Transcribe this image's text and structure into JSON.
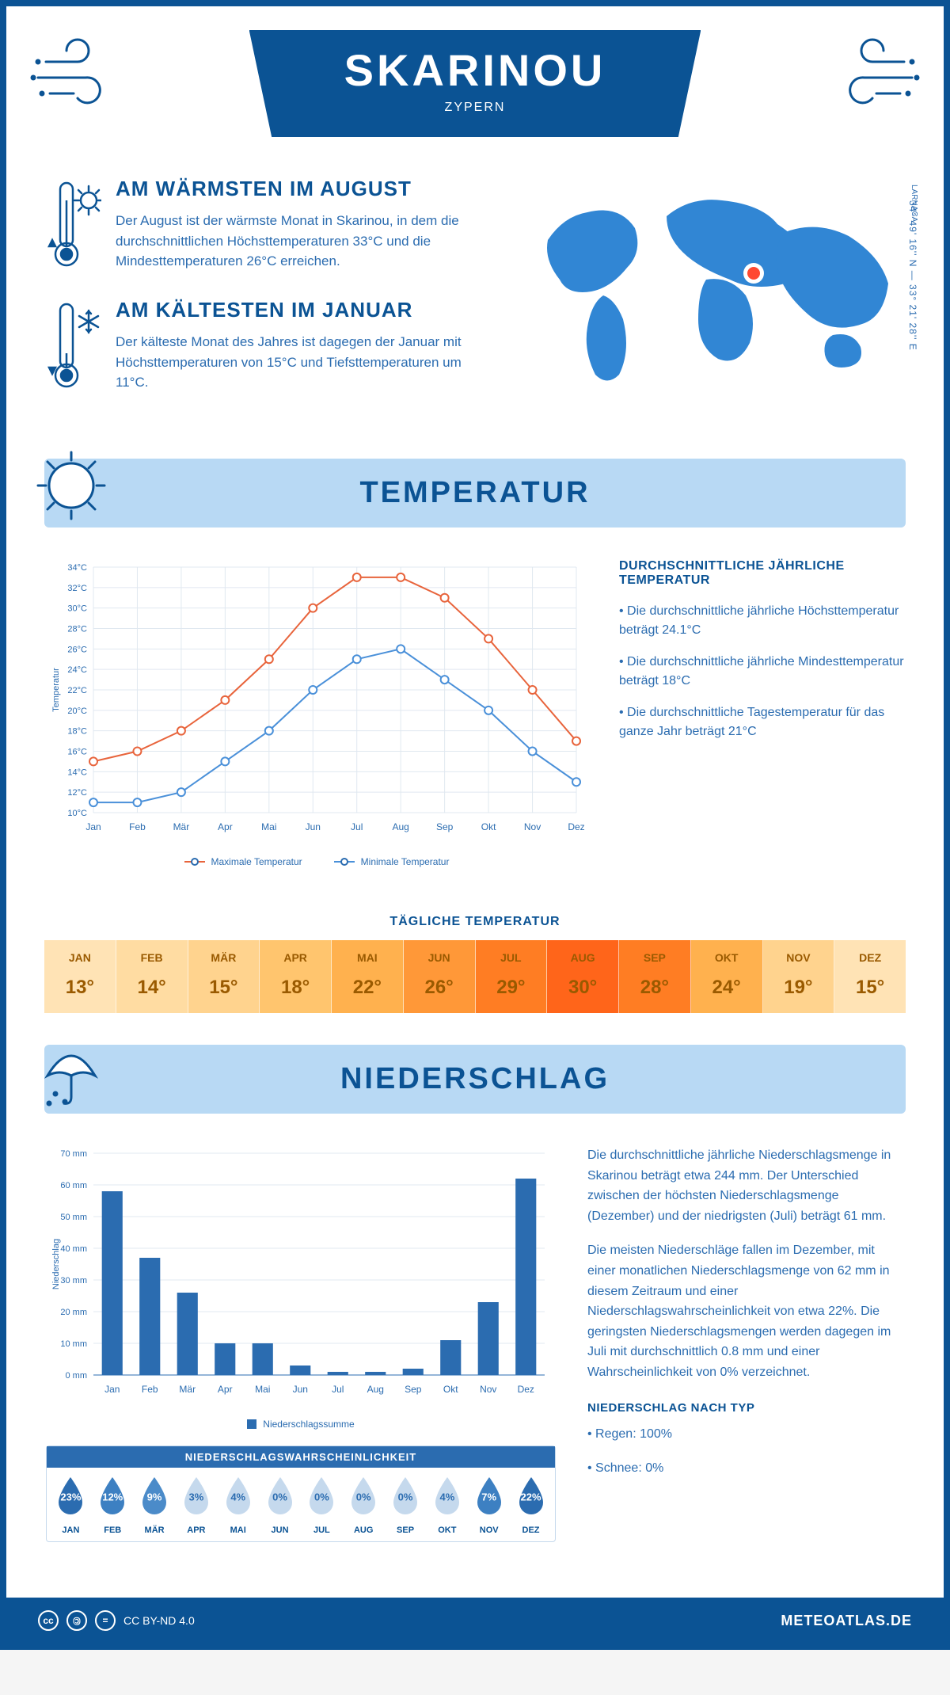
{
  "header": {
    "title": "SKARINOU",
    "subtitle": "ZYPERN"
  },
  "coords": "34° 49' 16'' N — 33° 21' 28'' E",
  "coords_sub": "LARNACA",
  "colors": {
    "primary": "#0b5394",
    "secondary": "#2b6cb0",
    "light_bg": "#b8d9f4",
    "max_line": "#e8643c",
    "min_line": "#4a90d9",
    "bar": "#2b6cb0",
    "background": "#ffffff",
    "grid": "#e0e8f0"
  },
  "warmest": {
    "title": "AM WÄRMSTEN IM AUGUST",
    "text": "Der August ist der wärmste Monat in Skarinou, in dem die durchschnittlichen Höchsttemperaturen 33°C und die Mindesttemperaturen 26°C erreichen."
  },
  "coldest": {
    "title": "AM KÄLTESTEN IM JANUAR",
    "text": "Der kälteste Monat des Jahres ist dagegen der Januar mit Höchsttemperaturen von 15°C und Tiefsttemperaturen um 11°C."
  },
  "temperature": {
    "section_title": "TEMPERATUR",
    "chart": {
      "type": "line",
      "months": [
        "Jan",
        "Feb",
        "Mär",
        "Apr",
        "Mai",
        "Jun",
        "Jul",
        "Aug",
        "Sep",
        "Okt",
        "Nov",
        "Dez"
      ],
      "max": [
        15,
        16,
        18,
        21,
        25,
        30,
        33,
        33,
        31,
        27,
        22,
        17
      ],
      "min": [
        11,
        11,
        12,
        15,
        18,
        22,
        25,
        26,
        23,
        20,
        16,
        13
      ],
      "ylabel": "Temperatur",
      "ylim": [
        10,
        34
      ],
      "ytick_step": 2,
      "legend_max": "Maximale Temperatur",
      "legend_min": "Minimale Temperatur",
      "line_width": 2,
      "marker_size": 5
    },
    "sidebar_title": "DURCHSCHNITTLICHE JÄHRLICHE TEMPERATUR",
    "sidebar_points": [
      "• Die durchschnittliche jährliche Höchsttemperatur beträgt 24.1°C",
      "• Die durchschnittliche jährliche Mindesttemperatur beträgt 18°C",
      "• Die durchschnittliche Tagestemperatur für das ganze Jahr beträgt 21°C"
    ],
    "daily_title": "TÄGLICHE TEMPERATUR",
    "daily": {
      "months": [
        "JAN",
        "FEB",
        "MÄR",
        "APR",
        "MAI",
        "JUN",
        "JUL",
        "AUG",
        "SEP",
        "OKT",
        "NOV",
        "DEZ"
      ],
      "values": [
        "13°",
        "14°",
        "15°",
        "18°",
        "22°",
        "26°",
        "29°",
        "30°",
        "28°",
        "24°",
        "19°",
        "15°"
      ],
      "colors": [
        "#ffe3b5",
        "#ffdca2",
        "#ffd38e",
        "#ffc56e",
        "#ffb14e",
        "#ff9838",
        "#ff7d23",
        "#ff651a",
        "#ff7d23",
        "#ffb14e",
        "#ffd38e",
        "#ffe3b5"
      ],
      "text_color": "#9a5a00"
    }
  },
  "precip": {
    "section_title": "NIEDERSCHLAG",
    "chart": {
      "type": "bar",
      "months": [
        "Jan",
        "Feb",
        "Mär",
        "Apr",
        "Mai",
        "Jun",
        "Jul",
        "Aug",
        "Sep",
        "Okt",
        "Nov",
        "Dez"
      ],
      "values": [
        58,
        37,
        26,
        10,
        10,
        3,
        1,
        1,
        2,
        11,
        23,
        62
      ],
      "ylabel": "Niederschlag",
      "ylim": [
        0,
        70
      ],
      "ytick_step": 10,
      "legend": "Niederschlagssumme",
      "bar_width": 0.55
    },
    "text1": "Die durchschnittliche jährliche Niederschlagsmenge in Skarinou beträgt etwa 244 mm. Der Unterschied zwischen der höchsten Niederschlagsmenge (Dezember) und der niedrigsten (Juli) beträgt 61 mm.",
    "text2": "Die meisten Niederschläge fallen im Dezember, mit einer monatlichen Niederschlagsmenge von 62 mm in diesem Zeitraum und einer Niederschlagswahrscheinlichkeit von etwa 22%. Die geringsten Niederschlagsmengen werden dagegen im Juli mit durchschnittlich 0.8 mm und einer Wahrscheinlichkeit von 0% verzeichnet.",
    "by_type_title": "NIEDERSCHLAG NACH TYP",
    "by_type": [
      "• Regen: 100%",
      "• Schnee: 0%"
    ],
    "prob_title": "NIEDERSCHLAGSWAHRSCHEINLICHKEIT",
    "prob": {
      "months": [
        "JAN",
        "FEB",
        "MÄR",
        "APR",
        "MAI",
        "JUN",
        "JUL",
        "AUG",
        "SEP",
        "OKT",
        "NOV",
        "DEZ"
      ],
      "values": [
        "23%",
        "12%",
        "9%",
        "3%",
        "4%",
        "0%",
        "0%",
        "0%",
        "0%",
        "4%",
        "7%",
        "22%"
      ],
      "fills": [
        "#2b6cb0",
        "#3d80c2",
        "#4b8bc9",
        "#c5d9ed",
        "#c5d9ed",
        "#c5d9ed",
        "#c5d9ed",
        "#c5d9ed",
        "#c5d9ed",
        "#c5d9ed",
        "#3d80c2",
        "#2b6cb0"
      ],
      "text_colors": [
        "#fff",
        "#fff",
        "#fff",
        "#2b6cb0",
        "#2b6cb0",
        "#2b6cb0",
        "#2b6cb0",
        "#2b6cb0",
        "#2b6cb0",
        "#2b6cb0",
        "#fff",
        "#fff"
      ]
    }
  },
  "footer": {
    "license": "CC BY-ND 4.0",
    "site": "METEOATLAS.DE"
  }
}
